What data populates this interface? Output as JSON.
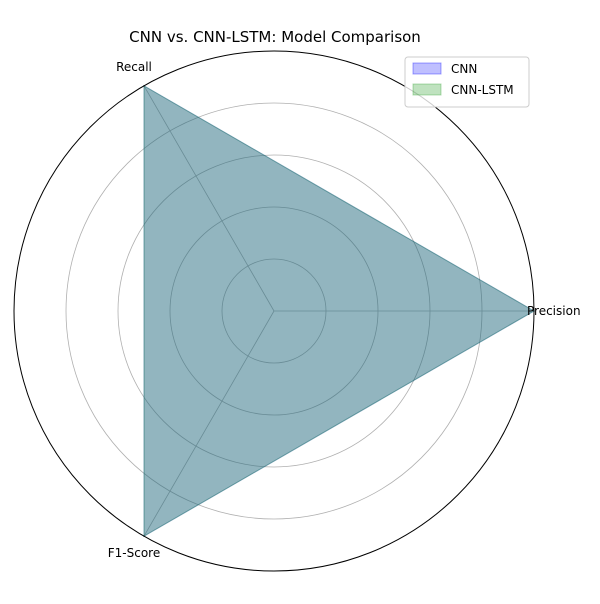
{
  "chart_data": {
    "type": "radar",
    "title": "CNN vs. CNN-LSTM: Model Comparison",
    "categories": [
      "Precision",
      "Recall",
      "F1-Score"
    ],
    "series": [
      {
        "name": "CNN",
        "values": [
          1.0,
          1.0,
          1.0
        ],
        "color": "#0000ff",
        "fill_opacity": 0.25
      },
      {
        "name": "CNN-LSTM",
        "values": [
          1.0,
          1.0,
          1.0
        ],
        "color": "#2ca02c",
        "fill_opacity": 0.3
      }
    ],
    "rlim": [
      0,
      1
    ],
    "radial_gridlines": [
      0.2,
      0.4,
      0.6,
      0.8
    ],
    "tick_labels_shown": false,
    "grid": true,
    "legend_position": "upper right"
  }
}
